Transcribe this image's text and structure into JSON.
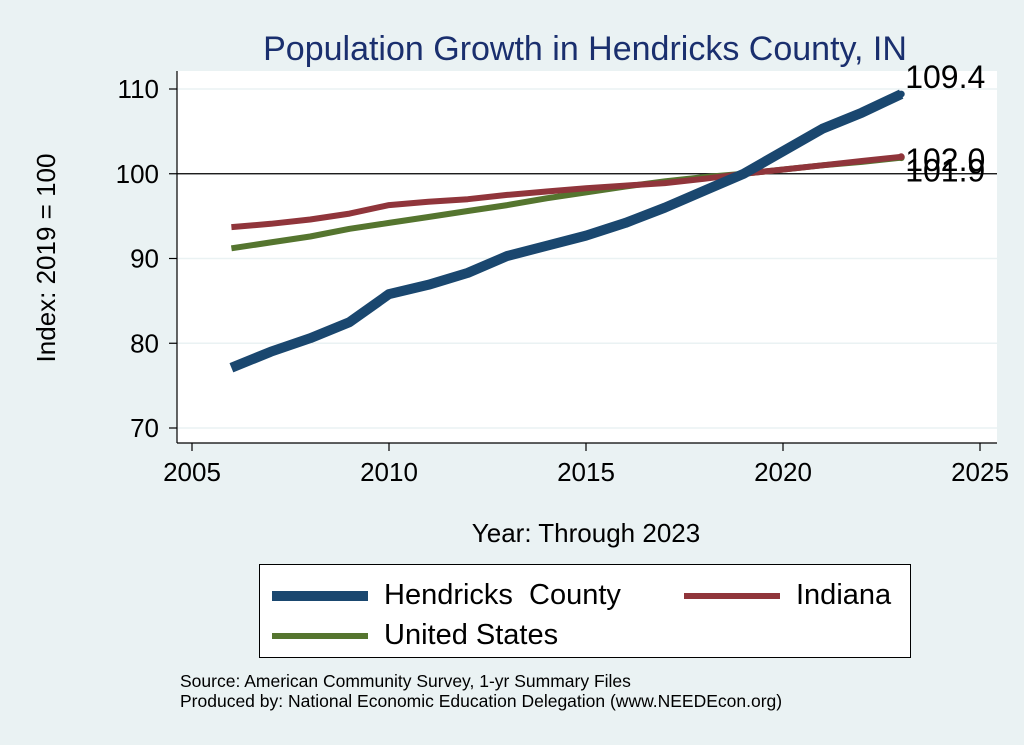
{
  "chart_data": {
    "type": "line",
    "title": "Population Growth in Hendricks County, IN",
    "xlabel": "Year: Through 2023",
    "ylabel": "Index: 2019 = 100",
    "xlim": [
      2005,
      2025
    ],
    "ylim": [
      70,
      110
    ],
    "x_ticks": [
      2005,
      2010,
      2015,
      2020,
      2025
    ],
    "y_ticks": [
      70,
      80,
      90,
      100,
      110
    ],
    "grid": true,
    "reference_line": 100,
    "legend_position": "bottom",
    "x": [
      2006,
      2007,
      2008,
      2009,
      2010,
      2011,
      2012,
      2013,
      2014,
      2015,
      2016,
      2017,
      2018,
      2019,
      2021,
      2022,
      2023
    ],
    "series": [
      {
        "name": "Hendricks  County",
        "color": "#1a476f",
        "values": [
          77.1,
          79.0,
          80.6,
          82.5,
          85.8,
          86.9,
          88.3,
          90.3,
          91.5,
          92.7,
          94.2,
          96.0,
          98.0,
          100.0,
          105.3,
          107.2,
          109.4
        ],
        "end_label": "109.4"
      },
      {
        "name": "Indiana",
        "color": "#90353b",
        "values": [
          93.7,
          94.1,
          94.6,
          95.3,
          96.3,
          96.7,
          97.0,
          97.5,
          97.9,
          98.3,
          98.6,
          98.9,
          99.4,
          100.0,
          101.0,
          101.5,
          102.0
        ],
        "end_label": "102.0"
      },
      {
        "name": "United States",
        "color": "#55752f",
        "values": [
          91.2,
          91.9,
          92.6,
          93.5,
          94.2,
          94.9,
          95.6,
          96.3,
          97.1,
          97.8,
          98.5,
          99.1,
          99.6,
          100.0,
          101.0,
          101.4,
          101.9
        ],
        "end_label": "101.9"
      }
    ]
  },
  "source_line": "Source: American Community Survey, 1-yr Summary Files",
  "produced_line": "Produced by: National Economic Education Delegation (www.NEEDEcon.org)"
}
